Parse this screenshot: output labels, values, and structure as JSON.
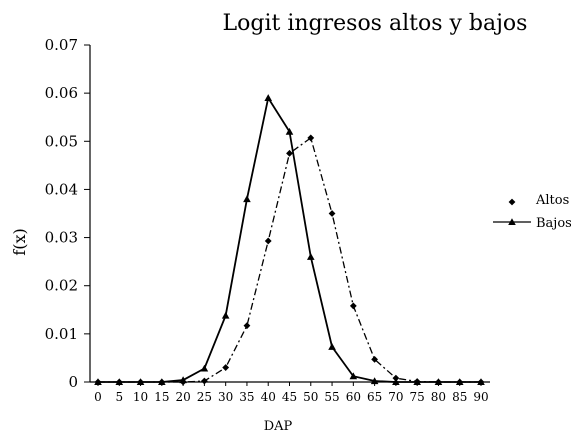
{
  "chart_data": {
    "type": "line",
    "title": "Logit ingresos altos y bajos",
    "xlabel": "DAP",
    "ylabel": "f(x)",
    "xlim": [
      0,
      90
    ],
    "ylim": [
      0,
      0.07
    ],
    "xticks": [
      "0",
      "5",
      "10",
      "15",
      "20",
      "25",
      "30",
      "35",
      "40",
      "45",
      "50",
      "55",
      "60",
      "65",
      "70",
      "75",
      "80",
      "85",
      "90"
    ],
    "yticks": [
      "0",
      "0.01",
      "0.02",
      "0.03",
      "0.04",
      "0.05",
      "0.06",
      "0.07"
    ],
    "grid": false,
    "legend_position": "right",
    "series": [
      {
        "name": "Altos",
        "line_style": "dash-dot",
        "marker": "diamond",
        "x": [
          0,
          5,
          10,
          15,
          20,
          25,
          30,
          35,
          40,
          45,
          50,
          55,
          60,
          65,
          70,
          75,
          80,
          85,
          90
        ],
        "y": [
          0,
          0,
          0,
          0,
          0,
          0.0002,
          0.003,
          0.0117,
          0.0293,
          0.0475,
          0.0507,
          0.035,
          0.0158,
          0.0047,
          0.0008,
          0.0001,
          0,
          0,
          0
        ]
      },
      {
        "name": "Bajos",
        "line_style": "solid",
        "marker": "triangle",
        "x": [
          0,
          5,
          10,
          15,
          20,
          25,
          30,
          35,
          40,
          45,
          50,
          55,
          60,
          65,
          70,
          75,
          80,
          85,
          90
        ],
        "y": [
          0,
          0,
          0,
          0,
          0.0004,
          0.0028,
          0.0138,
          0.038,
          0.059,
          0.052,
          0.026,
          0.0073,
          0.0012,
          0.0002,
          0,
          0,
          0,
          0,
          0
        ]
      }
    ]
  }
}
